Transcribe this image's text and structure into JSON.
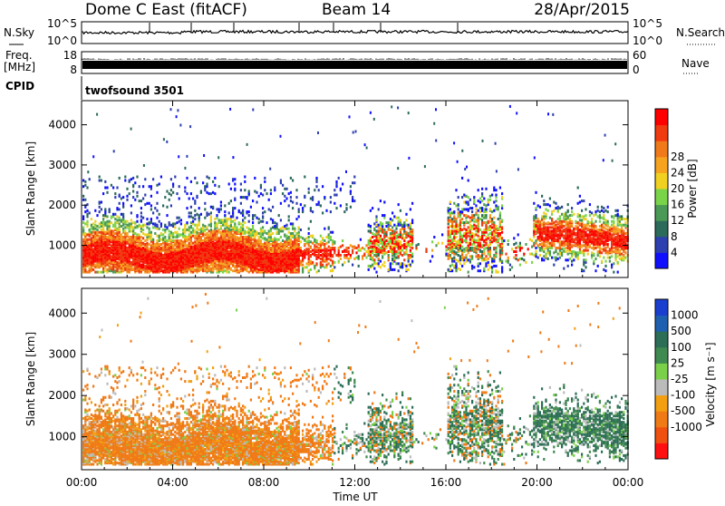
{
  "header": {
    "title": "Dome C East (fitACF)",
    "beam": "Beam 14",
    "date": "28/Apr/2015"
  },
  "top_panel": {
    "left_label": "N.Sky",
    "right_label": "N.Search",
    "left_ticks": [
      "10^5",
      "10^0"
    ],
    "right_ticks": [
      "10^5",
      "10^0"
    ]
  },
  "freq_panel": {
    "left_label_line1": "Freq.",
    "left_label_line2": "[MHz]",
    "right_label": "Nave",
    "left_ticks": [
      "18",
      "8"
    ],
    "right_ticks": [
      "60",
      "0"
    ]
  },
  "cpid": {
    "label": "CPID",
    "value": "twofsound 3501"
  },
  "x_axis": {
    "label": "Time UT",
    "ticks": [
      "00:00",
      "04:00",
      "08:00",
      "12:00",
      "16:00",
      "20:00",
      "00:00"
    ]
  },
  "chart_data": [
    {
      "type": "heatmap",
      "ylabel": "Slant Range [km]",
      "yticks": [
        1000,
        2000,
        3000,
        4000
      ],
      "ylim": [
        200,
        4600
      ],
      "x": [
        "00:00",
        "04:00",
        "08:00",
        "12:00",
        "16:00",
        "20:00",
        "00:00"
      ],
      "colorbar": {
        "label": "Power [dB]",
        "ticks": [
          "4",
          "8",
          "12",
          "16",
          "20",
          "24",
          "28"
        ],
        "colors": [
          "#1010ff",
          "#2e3fb0",
          "#2c6a5a",
          "#4a9a56",
          "#7ad44a",
          "#f0d020",
          "#f6a320",
          "#f07a1a",
          "#f03a10",
          "#ff0000"
        ]
      }
    },
    {
      "type": "heatmap",
      "ylabel": "Slant Range [km]",
      "yticks": [
        1000,
        2000,
        3000,
        4000
      ],
      "ylim": [
        200,
        4600
      ],
      "x": [
        "00:00",
        "04:00",
        "08:00",
        "12:00",
        "16:00",
        "20:00",
        "00:00"
      ],
      "colorbar": {
        "label": "Velocity [m s⁻¹]",
        "ticks": [
          "1000",
          "500",
          "100",
          "25",
          "-25",
          "-100",
          "-500",
          "-1000"
        ],
        "colors": [
          "#1a3fd0",
          "#1f5fb0",
          "#2d6e57",
          "#3f8a50",
          "#7bd04a",
          "#bbbbbb",
          "#f2a012",
          "#f07a16",
          "#f05010",
          "#ff1010"
        ]
      }
    }
  ]
}
